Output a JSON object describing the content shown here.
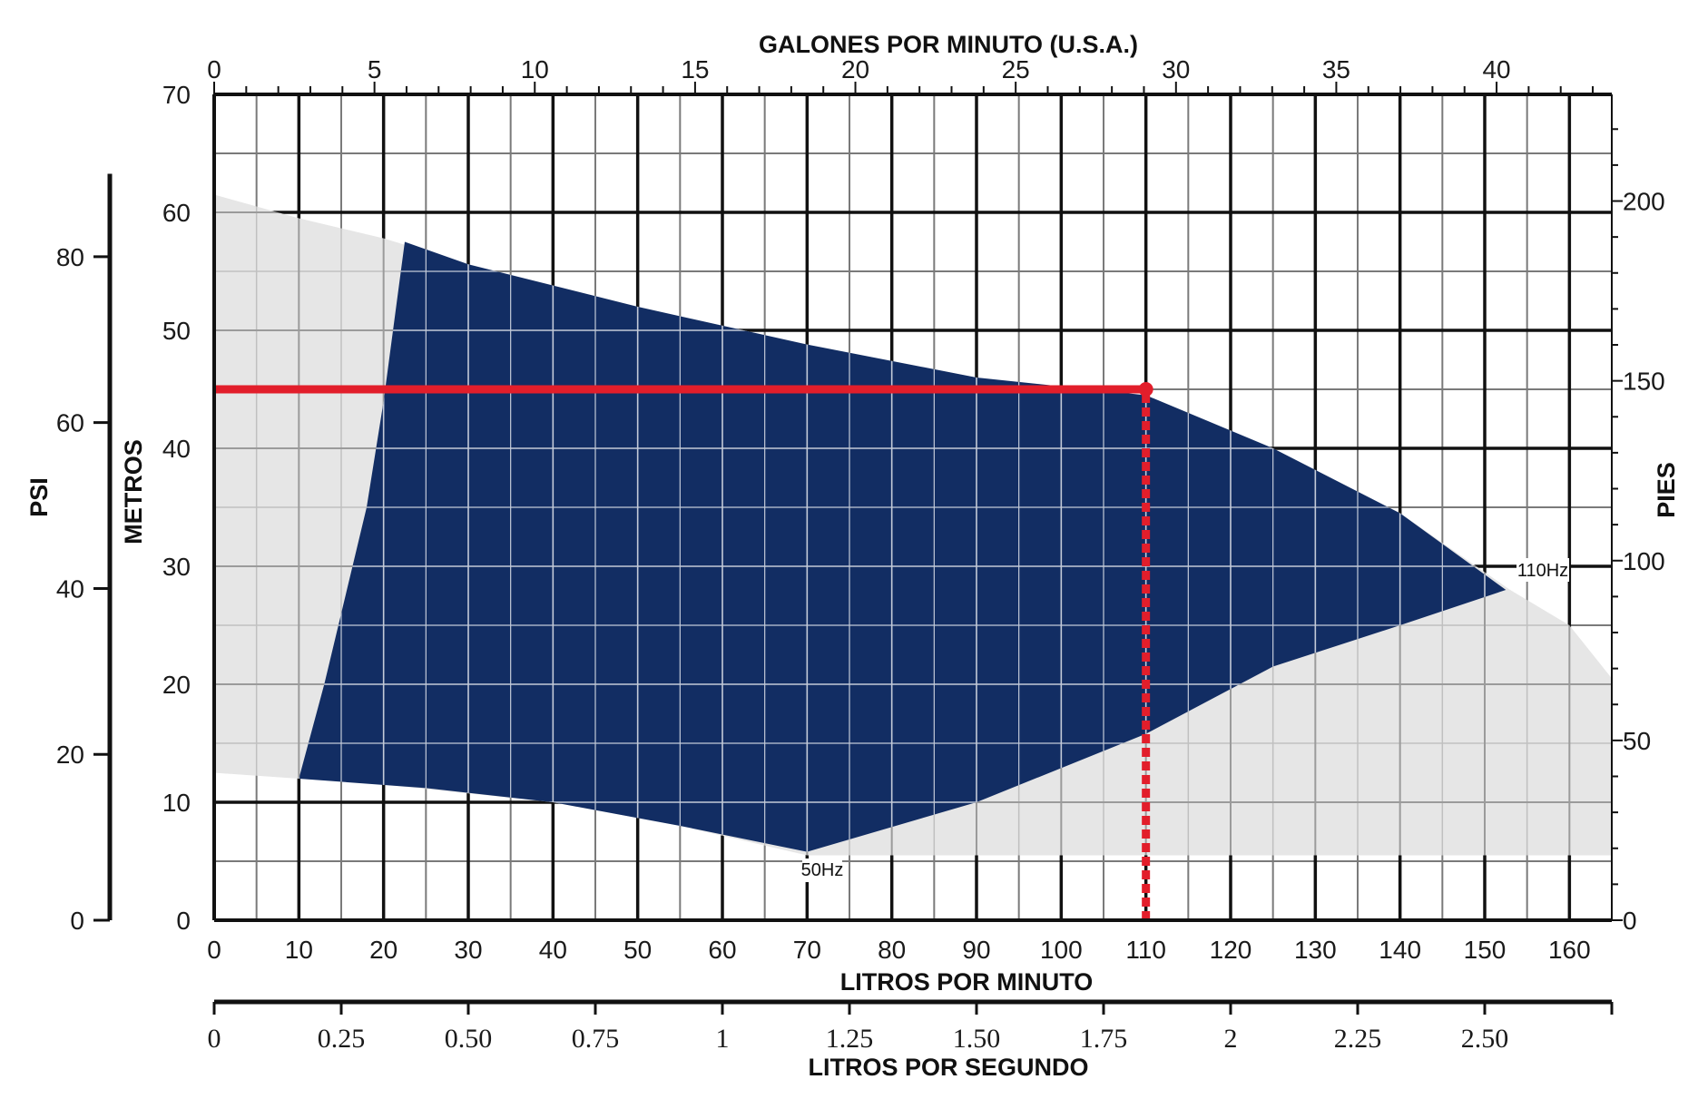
{
  "colors": {
    "background": "#ffffff",
    "grid_major": "#111111",
    "grid_minor": "#7a7a7a",
    "grid_inside_band": "#ffffff",
    "operating_band": "#122d63",
    "outer_envelope": "#e6e6e6",
    "highlight": "#e21e2b"
  },
  "axis_titles": {
    "top": "GALONES POR MINUTO (U.S.A.)",
    "bottom": "LITROS POR MINUTO",
    "bottom2": "LITROS POR SEGUNDO",
    "left_metros": "METROS",
    "left_psi": "PSI",
    "right": "PIES"
  },
  "curve_labels": {
    "low": "50Hz",
    "high": "110Hz"
  },
  "chart_data": {
    "type": "area",
    "x": {
      "label": "LITROS POR MINUTO",
      "min": 0,
      "max": 165,
      "ticks": [
        0,
        10,
        20,
        30,
        40,
        50,
        60,
        70,
        80,
        90,
        100,
        110,
        120,
        130,
        140,
        150,
        160
      ]
    },
    "y": {
      "label": "METROS",
      "min": 0,
      "max": 70,
      "ticks": [
        0,
        10,
        20,
        30,
        40,
        50,
        60,
        70
      ]
    },
    "x_top": {
      "label": "GALONES POR MINUTO (U.S.A.)",
      "ticks": [
        0,
        5,
        10,
        15,
        20,
        25,
        30,
        35,
        40
      ],
      "lpm_per_unit": 3.785
    },
    "x_bottom2": {
      "label": "LITROS POR SEGUNDO",
      "ticks": [
        "0",
        "0.25",
        "0.50",
        "0.75",
        "1",
        "1.25",
        "1.50",
        "1.75",
        "2",
        "2.25",
        "2.50"
      ],
      "tick_values": [
        0,
        0.25,
        0.5,
        0.75,
        1,
        1.25,
        1.5,
        1.75,
        2,
        2.25,
        2.5
      ],
      "lpm_per_unit": 60
    },
    "y_right": {
      "label": "PIES",
      "ticks": [
        0,
        50,
        100,
        150,
        200
      ],
      "meters_per_unit": 0.3048
    },
    "y_left_outer": {
      "label": "PSI",
      "ticks": [
        0,
        20,
        40,
        60,
        80
      ],
      "meters_per_unit": 0.703
    },
    "grid": true,
    "regions": [
      {
        "name": "outer-envelope",
        "points": [
          [
            0,
            61.5
          ],
          [
            10,
            59.5
          ],
          [
            20,
            57.8
          ],
          [
            30,
            55.6
          ],
          [
            50,
            52.0
          ],
          [
            70,
            48.8
          ],
          [
            90,
            46.0
          ],
          [
            110,
            44.5
          ],
          [
            125,
            40.0
          ],
          [
            140,
            34.5
          ],
          [
            153,
            28.0
          ],
          [
            160,
            25.0
          ],
          [
            165,
            20.5
          ],
          [
            165,
            5.5
          ],
          [
            70,
            5.5
          ],
          [
            55,
            8.0
          ],
          [
            40,
            10.0
          ],
          [
            20,
            11.5
          ],
          [
            10,
            12.0
          ],
          [
            0,
            12.5
          ]
        ]
      },
      {
        "name": "operating-band",
        "points": [
          [
            22.5,
            57.5
          ],
          [
            30,
            55.6
          ],
          [
            50,
            52.0
          ],
          [
            70,
            48.8
          ],
          [
            90,
            46.0
          ],
          [
            110,
            44.5
          ],
          [
            125,
            40.0
          ],
          [
            140,
            34.5
          ],
          [
            152.5,
            28.0
          ],
          [
            140,
            25.0
          ],
          [
            125,
            21.5
          ],
          [
            110,
            15.8
          ],
          [
            90,
            10.0
          ],
          [
            70,
            5.8
          ],
          [
            55,
            8.0
          ],
          [
            40,
            10.0
          ],
          [
            25,
            11.2
          ],
          [
            10,
            12.0
          ],
          [
            13,
            20.0
          ],
          [
            18,
            35.0
          ],
          [
            20,
            44.0
          ]
        ]
      }
    ],
    "annotations": {
      "operating_point": {
        "x": 110,
        "y": 45
      },
      "horizontal_line": {
        "y": 45,
        "x_from": 0,
        "x_to": 110
      },
      "vertical_line": {
        "x": 110,
        "y_from": 0,
        "y_to": 45
      },
      "low_speed_label_at": {
        "x": 70,
        "y": 5.8
      },
      "high_speed_label_at": {
        "x": 152.5,
        "y": 28.0
      }
    }
  }
}
